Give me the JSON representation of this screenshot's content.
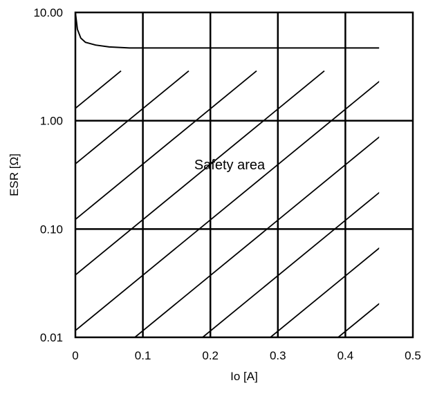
{
  "chart_data": {
    "type": "line",
    "title": "",
    "xlabel": "Io [A]",
    "ylabel": "ESR [Ω]",
    "xlim": [
      0,
      0.5
    ],
    "ylim": [
      0.01,
      10
    ],
    "y_scale": "log",
    "grid": true,
    "x_ticks": [
      "0",
      "0.1",
      "0.2",
      "0.3",
      "0.4",
      "0.5"
    ],
    "y_ticks": [
      "10.00",
      "1.00",
      "0.10",
      "0.01"
    ],
    "region_label": "Safety area",
    "boundary": {
      "x": [
        0.0,
        0.003,
        0.008,
        0.015,
        0.03,
        0.05,
        0.08,
        0.1,
        0.15,
        0.2,
        0.3,
        0.4,
        0.45
      ],
      "y": [
        10.0,
        7.0,
        5.8,
        5.3,
        5.0,
        4.8,
        4.7,
        4.7,
        4.7,
        4.7,
        4.7,
        4.7,
        4.7
      ]
    }
  }
}
